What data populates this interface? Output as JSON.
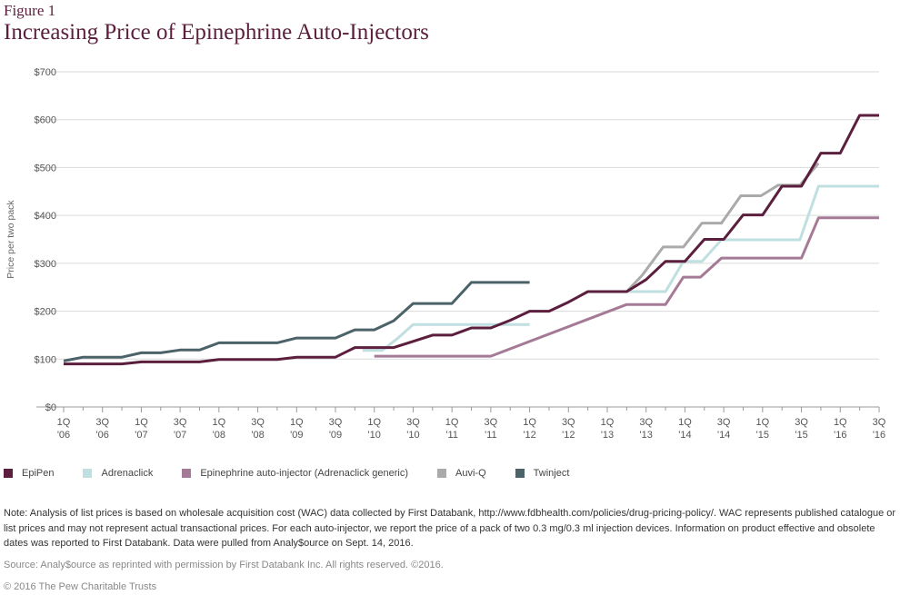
{
  "figure_label": "Figure 1",
  "title": "Increasing Price of Epinephrine Auto-Injectors",
  "note": "Note: Analysis of list prices is based on wholesale acquisition cost (WAC) data collected by First Databank, http://www.fdbhealth.com/policies/drug-pricing-policy/. WAC represents published catalogue or list prices and may not represent actual transactional prices. For each auto-injector, we report the price of a pack of two 0.3 mg/0.3 ml injection devices. Information on product effective and obsolete dates was reported to First Databank. Data were pulled from Analy$ource on Sept. 14, 2016.",
  "source": "Source: Analy$ource as reprinted with permission by First Databank Inc. All rights reserved. ©2016.",
  "copyright": "© 2016 The Pew Charitable Trusts",
  "chart_data": {
    "type": "line",
    "ylabel": "Price per two pack",
    "ylim": [
      0,
      700
    ],
    "yticks": [
      0,
      100,
      200,
      300,
      400,
      500,
      600,
      700
    ],
    "ytick_labels": [
      "$0",
      "$100",
      "$200",
      "$300",
      "$400",
      "$500",
      "$600",
      "$700"
    ],
    "xlim": [
      2006.0,
      2016.5
    ],
    "xticks": [
      {
        "x": 2006.0,
        "q": "1Q",
        "y": "'06"
      },
      {
        "x": 2006.5,
        "q": "3Q",
        "y": "'06"
      },
      {
        "x": 2007.0,
        "q": "1Q",
        "y": "'07"
      },
      {
        "x": 2007.5,
        "q": "3Q",
        "y": "'07"
      },
      {
        "x": 2008.0,
        "q": "1Q",
        "y": "'08"
      },
      {
        "x": 2008.5,
        "q": "3Q",
        "y": "'08"
      },
      {
        "x": 2009.0,
        "q": "1Q",
        "y": "'09"
      },
      {
        "x": 2009.5,
        "q": "3Q",
        "y": "'09"
      },
      {
        "x": 2010.0,
        "q": "1Q",
        "y": "'10"
      },
      {
        "x": 2010.5,
        "q": "3Q",
        "y": "'10"
      },
      {
        "x": 2011.0,
        "q": "1Q",
        "y": "'11"
      },
      {
        "x": 2011.5,
        "q": "3Q",
        "y": "'11"
      },
      {
        "x": 2012.0,
        "q": "1Q",
        "y": "'12"
      },
      {
        "x": 2012.5,
        "q": "3Q",
        "y": "'12"
      },
      {
        "x": 2013.0,
        "q": "1Q",
        "y": "'13"
      },
      {
        "x": 2013.5,
        "q": "3Q",
        "y": "'13"
      },
      {
        "x": 2014.0,
        "q": "1Q",
        "y": "'14"
      },
      {
        "x": 2014.5,
        "q": "3Q",
        "y": "'14"
      },
      {
        "x": 2015.0,
        "q": "1Q",
        "y": "'15"
      },
      {
        "x": 2015.5,
        "q": "3Q",
        "y": "'15"
      },
      {
        "x": 2016.0,
        "q": "1Q",
        "y": "'16"
      },
      {
        "x": 2016.5,
        "q": "3Q",
        "y": "'16"
      }
    ],
    "grid": true,
    "legend_position": "bottom",
    "series": [
      {
        "name": "Adrenaclick",
        "color": "#bfdfe0",
        "points": [
          [
            2009.85,
            118
          ],
          [
            2010.1,
            118
          ],
          [
            2010.3,
            143
          ],
          [
            2010.5,
            172
          ],
          [
            2012.0,
            172
          ]
        ]
      },
      {
        "name": "Epinephrine auto-injector (Adrenaclick generic)",
        "color": "#a57a96",
        "points": [
          [
            2010.0,
            106
          ],
          [
            2011.5,
            106
          ],
          [
            2013.25,
            214
          ],
          [
            2013.75,
            214
          ],
          [
            2013.98,
            271
          ],
          [
            2014.2,
            271
          ],
          [
            2014.47,
            311
          ],
          [
            2015.5,
            311
          ],
          [
            2015.72,
            395
          ],
          [
            2016.5,
            395
          ]
        ]
      },
      {
        "name": "Auvi-Q",
        "color": "#aaaaaa",
        "points": [
          [
            2013.0,
            241
          ],
          [
            2013.25,
            241
          ],
          [
            2013.45,
            275
          ],
          [
            2013.72,
            334
          ],
          [
            2013.98,
            334
          ],
          [
            2014.22,
            384
          ],
          [
            2014.47,
            384
          ],
          [
            2014.72,
            441
          ],
          [
            2014.98,
            441
          ],
          [
            2015.2,
            463
          ],
          [
            2015.48,
            463
          ],
          [
            2015.72,
            509
          ]
        ]
      },
      {
        "name": "Adrenaclick",
        "color": "#bfdfe0",
        "points": [
          [
            2013.0,
            241
          ],
          [
            2013.25,
            241
          ],
          [
            2013.75,
            241
          ],
          [
            2013.98,
            304
          ],
          [
            2014.22,
            304
          ],
          [
            2014.47,
            349
          ],
          [
            2015.48,
            349
          ],
          [
            2015.72,
            461
          ],
          [
            2016.5,
            461
          ]
        ]
      },
      {
        "name": "Twinject",
        "color": "#4b6269",
        "points": [
          [
            2006.0,
            96
          ],
          [
            2006.25,
            104
          ],
          [
            2006.75,
            104
          ],
          [
            2007.0,
            113
          ],
          [
            2007.25,
            113
          ],
          [
            2007.5,
            119
          ],
          [
            2007.75,
            119
          ],
          [
            2008.0,
            134
          ],
          [
            2008.75,
            134
          ],
          [
            2009.0,
            144
          ],
          [
            2009.5,
            144
          ],
          [
            2009.75,
            161
          ],
          [
            2010.0,
            161
          ],
          [
            2010.25,
            180
          ],
          [
            2010.5,
            216
          ],
          [
            2011.0,
            216
          ],
          [
            2011.25,
            260
          ],
          [
            2012.0,
            260
          ]
        ]
      },
      {
        "name": "EpiPen",
        "color": "#5b1e3c",
        "points": [
          [
            2006.0,
            90
          ],
          [
            2006.75,
            90
          ],
          [
            2007.0,
            94
          ],
          [
            2007.75,
            94
          ],
          [
            2008.0,
            99
          ],
          [
            2008.75,
            99
          ],
          [
            2009.0,
            104
          ],
          [
            2009.5,
            104
          ],
          [
            2009.75,
            124
          ],
          [
            2010.25,
            124
          ],
          [
            2010.5,
            137
          ],
          [
            2010.75,
            150
          ],
          [
            2011.0,
            150
          ],
          [
            2011.25,
            165
          ],
          [
            2011.5,
            165
          ],
          [
            2011.75,
            181
          ],
          [
            2012.0,
            200
          ],
          [
            2012.25,
            200
          ],
          [
            2012.5,
            219
          ],
          [
            2012.75,
            241
          ],
          [
            2013.25,
            241
          ],
          [
            2013.5,
            266
          ],
          [
            2013.75,
            304
          ],
          [
            2014.0,
            304
          ],
          [
            2014.25,
            350
          ],
          [
            2014.5,
            350
          ],
          [
            2014.75,
            401
          ],
          [
            2015.0,
            401
          ],
          [
            2015.25,
            461
          ],
          [
            2015.5,
            461
          ],
          [
            2015.75,
            530
          ],
          [
            2016.0,
            530
          ],
          [
            2016.25,
            609
          ],
          [
            2016.5,
            609
          ]
        ]
      }
    ],
    "legend": [
      {
        "name": "EpiPen",
        "color": "#5b1e3c"
      },
      {
        "name": "Adrenaclick",
        "color": "#bfdfe0"
      },
      {
        "name": "Epinephrine auto-injector (Adrenaclick generic)",
        "color": "#a57a96"
      },
      {
        "name": "Auvi-Q",
        "color": "#aaaaaa"
      },
      {
        "name": "Twinject",
        "color": "#4b6269"
      }
    ]
  }
}
